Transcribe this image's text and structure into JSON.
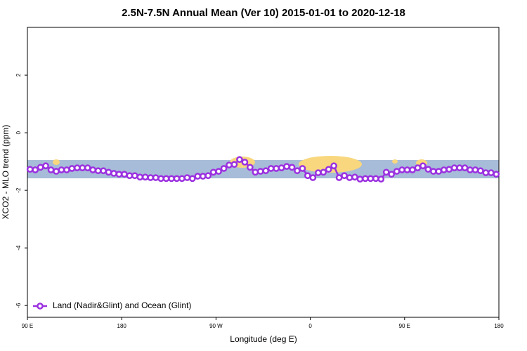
{
  "chart_data": {
    "type": "line",
    "title": "2.5N-7.5N Annual Mean (Ver 10)   2015-01-01 to 2020-12-18",
    "x_label": "Longitude (deg E)",
    "y_label": "XCO2 - MLO trend (ppm)",
    "xlim": [
      90,
      540
    ],
    "ylim": [
      -6.41,
      3.66
    ],
    "xticks": [
      {
        "value": 90,
        "label": "90 E"
      },
      180,
      {
        "value": 270,
        "label": "90 W"
      },
      {
        "value": 360,
        "label": "0"
      },
      {
        "value": 450,
        "label": "90 E"
      },
      {
        "value": 540,
        "label": "180"
      }
    ],
    "yticks": [
      2,
      0,
      -2,
      -4,
      -6
    ],
    "legend": "bottom-left",
    "x": [
      92.5,
      97.5,
      102.5,
      107.5,
      112.5,
      117.5,
      122.5,
      127.5,
      132.5,
      137.5,
      142.5,
      147.5,
      152.5,
      157.5,
      162.5,
      167.5,
      172.5,
      177.5,
      182.5,
      187.5,
      192.5,
      197.5,
      202.5,
      207.5,
      212.5,
      217.5,
      222.5,
      227.5,
      232.5,
      237.5,
      242.5,
      247.5,
      252.5,
      257.5,
      262.5,
      267.5,
      272.5,
      277.5,
      282.5,
      287.5,
      292.5,
      297.5,
      302.5,
      307.5,
      312.5,
      317.5,
      322.5,
      327.5,
      332.5,
      337.5,
      342.5,
      347.5,
      352.5,
      357.5,
      362.5,
      367.5,
      372.5,
      377.5,
      382.5,
      387.5,
      392.5,
      397.5,
      402.5,
      407.5,
      412.5,
      417.5,
      422.5,
      427.5,
      432.5,
      437.5,
      442.5,
      447.5,
      452.5,
      457.5,
      462.5,
      467.5,
      472.5,
      477.5,
      482.5,
      487.5,
      492.5,
      497.5,
      502.5,
      507.5,
      512.5,
      517.5,
      522.5,
      527.5,
      532.5,
      537.5
    ],
    "series": [
      {
        "name": "Land (Nadir&Glint) and Ocean (Glint)",
        "color": "#9b30e0",
        "values": [
          -1.27,
          -1.29,
          -1.2,
          -1.15,
          -1.29,
          -1.34,
          -1.29,
          -1.29,
          -1.24,
          -1.22,
          -1.22,
          -1.22,
          -1.29,
          -1.32,
          -1.32,
          -1.37,
          -1.41,
          -1.44,
          -1.44,
          -1.49,
          -1.49,
          -1.54,
          -1.54,
          -1.56,
          -1.56,
          -1.59,
          -1.59,
          -1.59,
          -1.59,
          -1.59,
          -1.56,
          -1.59,
          -1.51,
          -1.51,
          -1.49,
          -1.37,
          -1.34,
          -1.24,
          -1.12,
          -1.1,
          -0.93,
          -1.02,
          -1.2,
          -1.37,
          -1.34,
          -1.32,
          -1.24,
          -1.24,
          -1.22,
          -1.17,
          -1.2,
          -1.32,
          -1.24,
          -1.49,
          -1.56,
          -1.39,
          -1.37,
          -1.27,
          -1.15,
          -1.56,
          -1.49,
          -1.56,
          -1.54,
          -1.61,
          -1.59,
          -1.59,
          -1.59,
          -1.61,
          -1.37,
          -1.44,
          -1.34,
          -1.29,
          -1.29,
          -1.29,
          -1.22,
          -1.15,
          -1.27,
          -1.34,
          -1.34,
          -1.29,
          -1.27,
          -1.22,
          -1.22,
          -1.22,
          -1.29,
          -1.29,
          -1.32,
          -1.39,
          -1.39,
          -1.44
        ]
      }
    ]
  }
}
